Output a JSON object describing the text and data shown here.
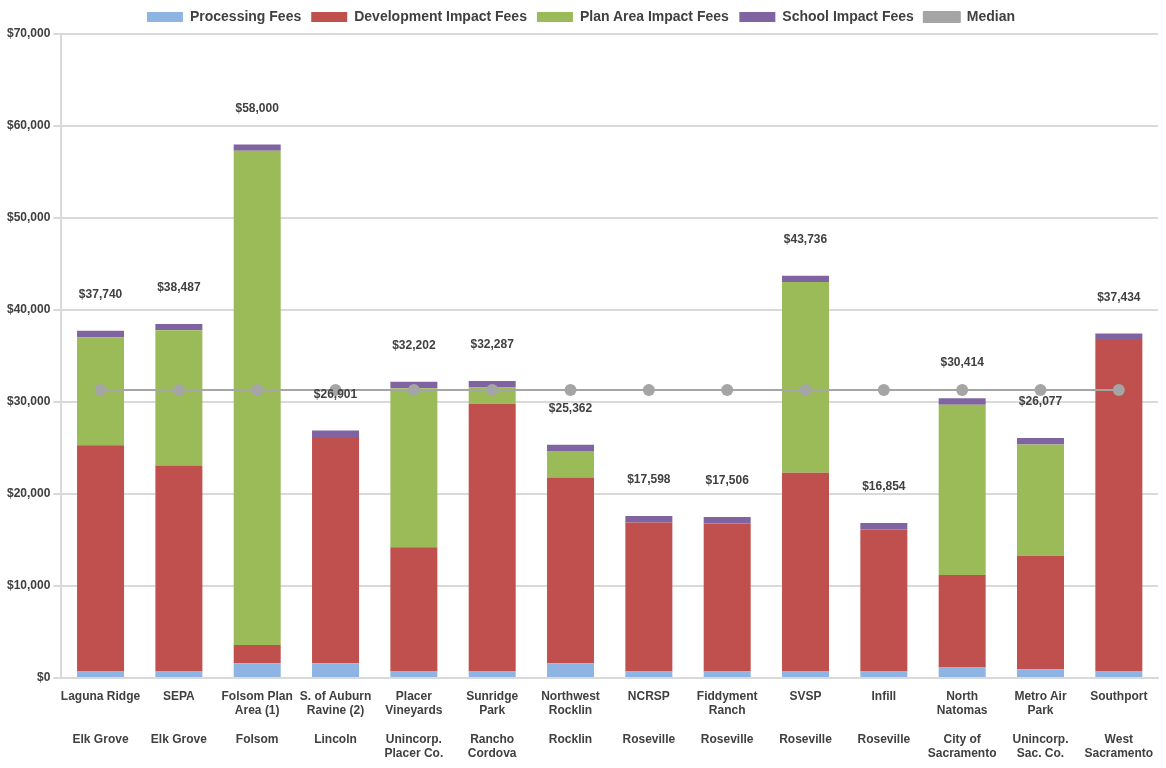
{
  "chart_data": {
    "type": "bar",
    "stacked": true,
    "categories": [
      "Laguna Ridge\nElk Grove",
      "SEPA\nElk Grove",
      "Folsom Plan Area (1)\nFolsom",
      "S. of Auburn Ravine (2)\nLincoln",
      "Placer Vineyards\nUnincorp. Placer Co.",
      "Sunridge Park\nRancho Cordova",
      "Northwest Rocklin\nRocklin",
      "NCRSP\nRoseville",
      "Fiddyment Ranch\nRoseville",
      "SVSP\nRoseville",
      "Infill\nRoseville",
      "North Natomas\nCity of Sacramento",
      "Metro Air Park\nUnincorp. Sac. Co.",
      "Southport\nWest Sacramento"
    ],
    "series": [
      {
        "name": "Processing Fees",
        "color": "#8db4e2",
        "values": [
          700,
          700,
          1600,
          1600,
          700,
          700,
          1600,
          700,
          700,
          700,
          700,
          1150,
          950,
          700
        ]
      },
      {
        "name": "Development Impact Fees",
        "color": "#c0504d",
        "values": [
          24600,
          22400,
          2000,
          24600,
          13500,
          29100,
          20200,
          16198,
          16106,
          21600,
          15454,
          10050,
          12350,
          36034
        ]
      },
      {
        "name": "Plan Area Impact Fees",
        "color": "#9bbb59",
        "values": [
          11740,
          14687,
          53700,
          0,
          17302,
          1787,
          2862,
          0,
          0,
          20736,
          0,
          18514,
          12077,
          0
        ]
      },
      {
        "name": "School Impact Fees",
        "color": "#8064a2",
        "values": [
          700,
          700,
          700,
          701,
          700,
          700,
          700,
          700,
          700,
          700,
          700,
          700,
          700,
          700
        ]
      },
      {
        "name": "Median",
        "type": "line",
        "color": "#a5a5a5",
        "values": [
          31300,
          31300,
          31300,
          31300,
          31300,
          31300,
          31300,
          31300,
          31300,
          31300,
          31300,
          31300,
          31300,
          31300
        ]
      }
    ],
    "totals": [
      "$37,740",
      "$38,487",
      "$58,000",
      "$26,901",
      "$32,202",
      "$32,287",
      "$25,362",
      "$17,598",
      "$17,506",
      "$43,736",
      "$16,854",
      "$30,414",
      "$26,077",
      "$37,434"
    ],
    "ylim": [
      0,
      70000
    ],
    "yticks": [
      {
        "value": 0,
        "label": "$0"
      },
      {
        "value": 10000,
        "label": "$10,000"
      },
      {
        "value": 20000,
        "label": "$20,000"
      },
      {
        "value": 30000,
        "label": "$30,000"
      },
      {
        "value": 40000,
        "label": "$40,000"
      },
      {
        "value": 50000,
        "label": "$50,000"
      },
      {
        "value": 60000,
        "label": "$60,000"
      },
      {
        "value": 70000,
        "label": "$70,000"
      }
    ],
    "grid": "y",
    "legend": "top",
    "marker": "circle",
    "line_style": "solid"
  }
}
